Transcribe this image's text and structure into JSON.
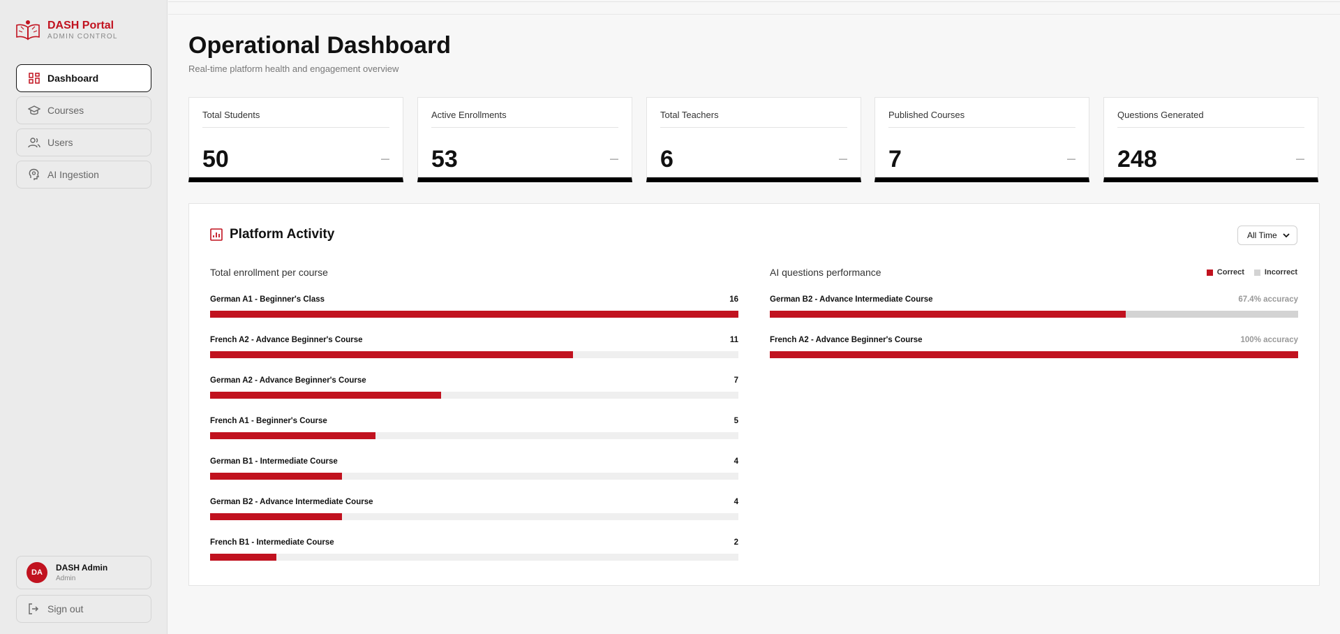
{
  "brand": {
    "title": "DASH Portal",
    "subtitle": "ADMIN CONTROL"
  },
  "sidebar": {
    "items": [
      {
        "id": "dashboard",
        "label": "Dashboard",
        "icon": "dashboard-grid-icon",
        "active": true
      },
      {
        "id": "courses",
        "label": "Courses",
        "icon": "graduation-cap-icon",
        "active": false
      },
      {
        "id": "users",
        "label": "Users",
        "icon": "users-icon",
        "active": false
      },
      {
        "id": "ai-ingestion",
        "label": "AI Ingestion",
        "icon": "ai-brain-icon",
        "active": false
      }
    ],
    "user": {
      "initials": "DA",
      "name": "DASH Admin",
      "role": "Admin"
    },
    "signout_label": "Sign out"
  },
  "header": {
    "title": "Operational Dashboard",
    "subtitle": "Real-time platform health and engagement overview"
  },
  "stats": [
    {
      "label": "Total Students",
      "value": "50",
      "trend": "—"
    },
    {
      "label": "Active Enrollments",
      "value": "53",
      "trend": "—"
    },
    {
      "label": "Total Teachers",
      "value": "6",
      "trend": "—"
    },
    {
      "label": "Published Courses",
      "value": "7",
      "trend": "—"
    },
    {
      "label": "Questions Generated",
      "value": "248",
      "trend": "—"
    }
  ],
  "activity": {
    "title": "Platform Activity",
    "range": "All Time",
    "enrollment_heading": "Total enrollment per course",
    "performance_heading": "AI questions performance",
    "legend": {
      "correct": "Correct",
      "incorrect": "Incorrect"
    },
    "colors": {
      "accent": "#c1121f",
      "track": "#efefef",
      "incorrect": "#d3d3d3"
    }
  },
  "chart_data": [
    {
      "type": "bar",
      "orientation": "horizontal",
      "title": "Total enrollment per course",
      "categories": [
        "German A1 - Beginner's Class",
        "French A2 - Advance Beginner's Course",
        "German A2 - Advance Beginner's Course",
        "French A1 - Beginner's Course",
        "German B1 - Intermediate Course",
        "German B2 - Advance Intermediate Course",
        "French B1 - Intermediate Course"
      ],
      "values": [
        16,
        11,
        7,
        5,
        4,
        4,
        2
      ],
      "xlim": [
        0,
        16
      ]
    },
    {
      "type": "bar",
      "orientation": "horizontal",
      "stacked": true,
      "title": "AI questions performance",
      "categories": [
        "German B2 - Advance Intermediate Course",
        "French A2 - Advance Beginner's Course"
      ],
      "series": [
        {
          "name": "Correct",
          "values": [
            67.4,
            100
          ]
        },
        {
          "name": "Incorrect",
          "values": [
            32.6,
            0
          ]
        }
      ],
      "value_labels": [
        "67.4% accuracy",
        "100% accuracy"
      ],
      "legend": "top-right",
      "xlim": [
        0,
        100
      ]
    }
  ]
}
